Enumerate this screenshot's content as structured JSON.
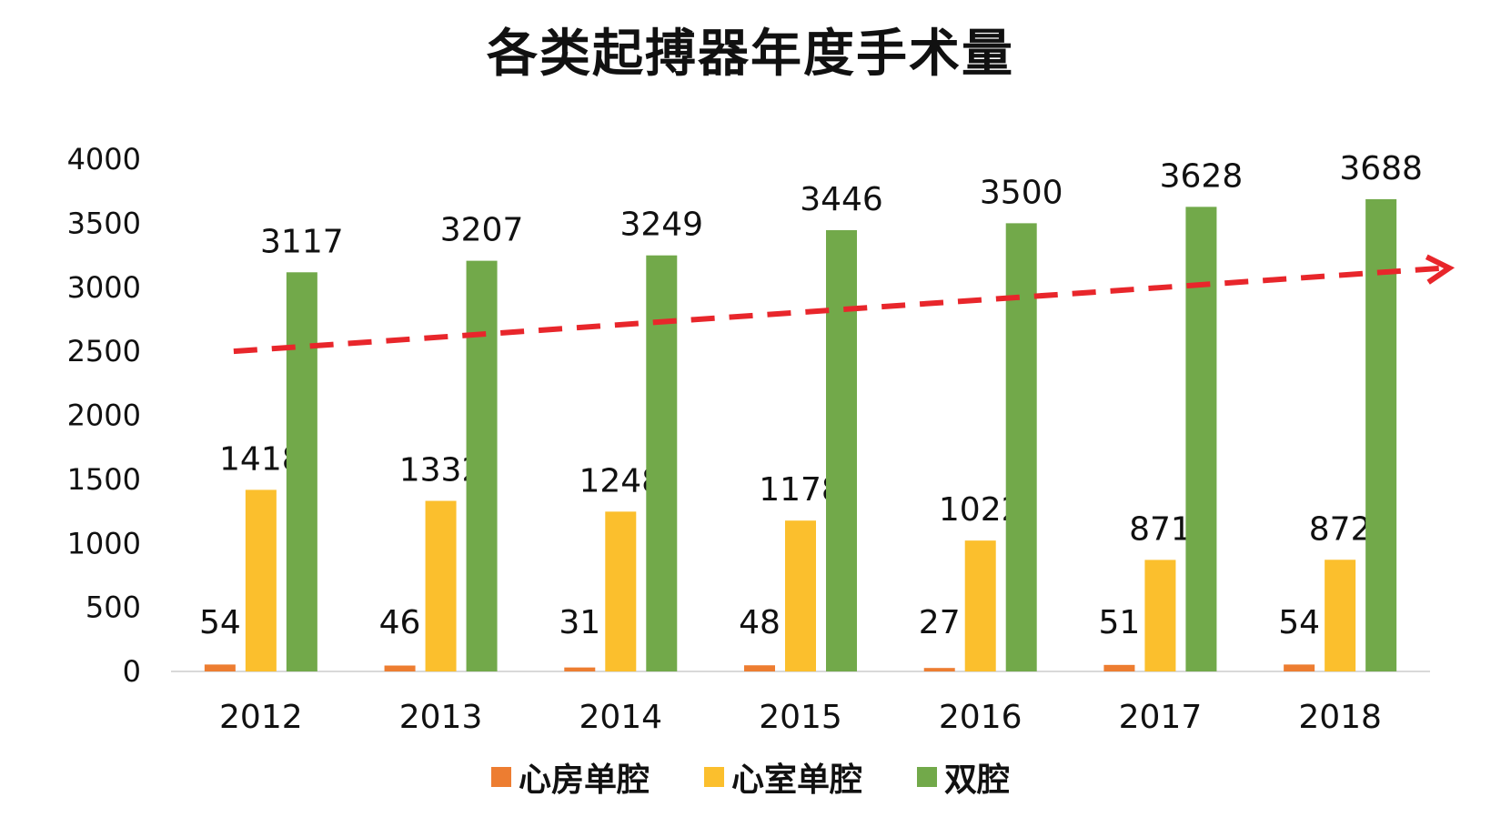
{
  "chart_data": {
    "type": "bar",
    "title": "各类起搏器年度手术量",
    "categories": [
      "2012",
      "2013",
      "2014",
      "2015",
      "2016",
      "2017",
      "2018"
    ],
    "series": [
      {
        "name": "心房单腔",
        "color": "#ED7D31",
        "values": [
          54,
          46,
          31,
          48,
          27,
          51,
          54
        ]
      },
      {
        "name": "心室单腔",
        "color": "#FBBF2D",
        "values": [
          1418,
          1332,
          1248,
          1178,
          1022,
          871,
          872
        ]
      },
      {
        "name": "双腔",
        "color": "#72A94A",
        "values": [
          3117,
          3207,
          3249,
          3446,
          3500,
          3628,
          3688
        ]
      }
    ],
    "ylim": [
      0,
      4000
    ],
    "yticks": [
      0,
      500,
      1000,
      1500,
      2000,
      2500,
      3000,
      3500,
      4000
    ],
    "xlabel": "",
    "ylabel": "",
    "grid": false,
    "legend_position": "bottom",
    "annotations": [
      {
        "type": "trend-arrow",
        "style": "dashed",
        "color": "#E8262B",
        "from": {
          "x": "2012",
          "y": 2500
        },
        "to": {
          "x": "2018",
          "y": 3150
        }
      }
    ]
  }
}
